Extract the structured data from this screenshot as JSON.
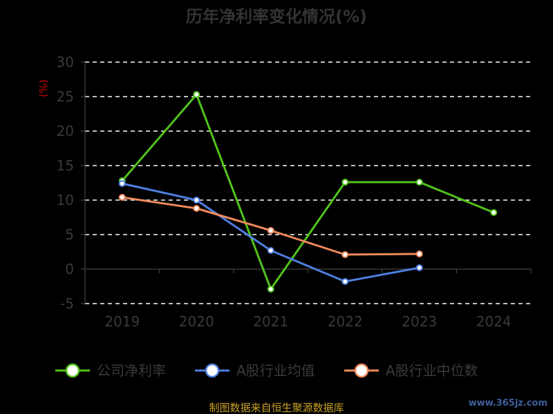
{
  "chart_data": {
    "type": "line",
    "title": "历年净利率变化情况(%)",
    "ylabel": "(%)",
    "categories": [
      "2019",
      "2020",
      "2021",
      "2022",
      "2023",
      "2024"
    ],
    "ylim": [
      -5,
      30
    ],
    "yticks": [
      -5,
      0,
      5,
      10,
      15,
      20,
      25,
      30
    ],
    "grid": true,
    "legend_position": "bottom",
    "series": [
      {
        "name": "公司净利率",
        "color": "#52c41a",
        "values": [
          12.8,
          25.3,
          -2.9,
          12.6,
          12.6,
          8.2
        ]
      },
      {
        "name": "A股行业均值",
        "color": "#4e7fe0",
        "values": [
          12.4,
          10.0,
          2.7,
          -1.8,
          0.2,
          null
        ]
      },
      {
        "name": "A股行业中位数",
        "color": "#f08a5d",
        "values": [
          10.4,
          8.8,
          5.6,
          2.1,
          2.2,
          null
        ]
      }
    ]
  },
  "footer": {
    "source": "制图数据来自恒生聚源数据库",
    "watermark": "www.365jz.com"
  }
}
